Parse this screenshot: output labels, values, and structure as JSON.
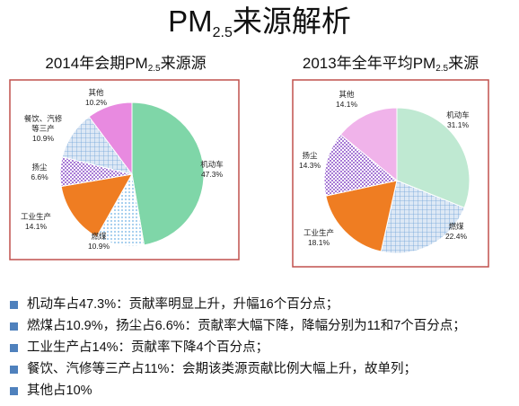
{
  "page": {
    "title_main": "PM",
    "title_sub": "2.5",
    "title_tail": "来源解析"
  },
  "chart_data": [
    {
      "type": "pie",
      "title_pre": "2014年会期PM",
      "title_sub": "2.5",
      "title_post": "来源源",
      "slices": [
        {
          "label": "机动车",
          "value": 47.3,
          "display": "47.3%",
          "color": "#7fd6a8"
        },
        {
          "label": "燃煤",
          "value": 10.9,
          "display": "10.9%",
          "color": "#8fc3ea"
        },
        {
          "label": "工业生产",
          "value": 14.1,
          "display": "14.1%",
          "color": "#ef7d22"
        },
        {
          "label": "扬尘",
          "value": 6.6,
          "display": "6.6%",
          "color": "#b48cd8"
        },
        {
          "label": "餐饮、汽修等三产",
          "value": 10.9,
          "display": "10.9%",
          "color": "#7272e6"
        },
        {
          "label": "其他",
          "value": 10.2,
          "display": "10.2%",
          "color": "#e88ae0"
        }
      ]
    },
    {
      "type": "pie",
      "title_pre": "2013年全年平均PM",
      "title_sub": "2.5",
      "title_post": "来源",
      "slices": [
        {
          "label": "机动车",
          "value": 31.1,
          "display": "31.1%",
          "color": "#7fd6a8"
        },
        {
          "label": "燃煤",
          "value": 22.4,
          "display": "22.4%",
          "color": "#8fc3ea"
        },
        {
          "label": "工业生产",
          "value": 18.1,
          "display": "18.1%",
          "color": "#ef7d22"
        },
        {
          "label": "扬尘",
          "value": 14.3,
          "display": "14.3%",
          "color": "#b48cd8"
        },
        {
          "label": "其他",
          "value": 14.1,
          "display": "14.1%",
          "color": "#e88ae0"
        }
      ]
    }
  ],
  "bullets": [
    "机动车占47.3%：贡献率明显上升，升幅16个百分点；",
    "燃煤占10.9%，扬尘占6.6%：贡献率大幅下降，降幅分别为11和7个百分点；",
    "工业生产占14%：贡献率下降4个百分点；",
    "餐饮、汽修等三产占11%：会期该类源贡献比例大幅上升，故单列；",
    "其他占10%"
  ]
}
